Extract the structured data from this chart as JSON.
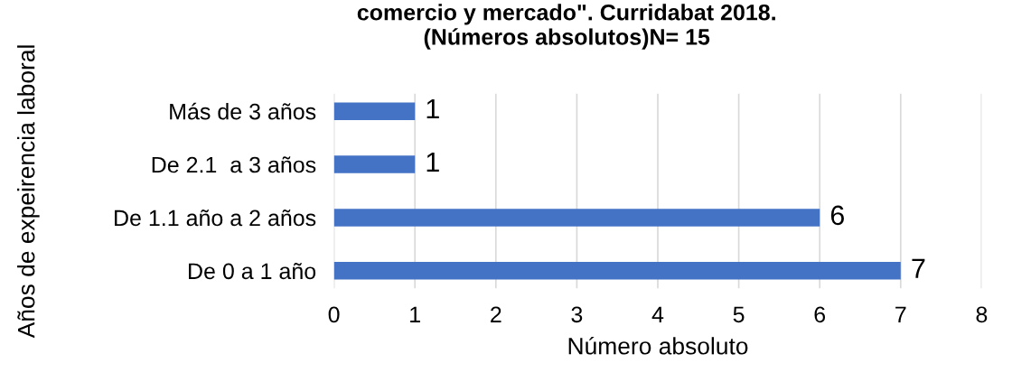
{
  "chart_data": {
    "type": "bar",
    "orientation": "horizontal",
    "title": "comercio y mercado\". Curridabat 2018.\n(Números absolutos)N= 15",
    "xlabel": "Número absoluto",
    "ylabel": "Años de expeirencia laboral",
    "categories": [
      "Más de 3 años",
      "De 2.1  a 3 años",
      "De 1.1 año a 2 años",
      "De 0 a 1 año"
    ],
    "values": [
      1,
      1,
      6,
      7
    ],
    "color": "#4472c4",
    "xlim": [
      0,
      8
    ],
    "xticks": [
      0,
      1,
      2,
      3,
      4,
      5,
      6,
      7,
      8
    ],
    "grid": "x",
    "data_labels": true
  }
}
